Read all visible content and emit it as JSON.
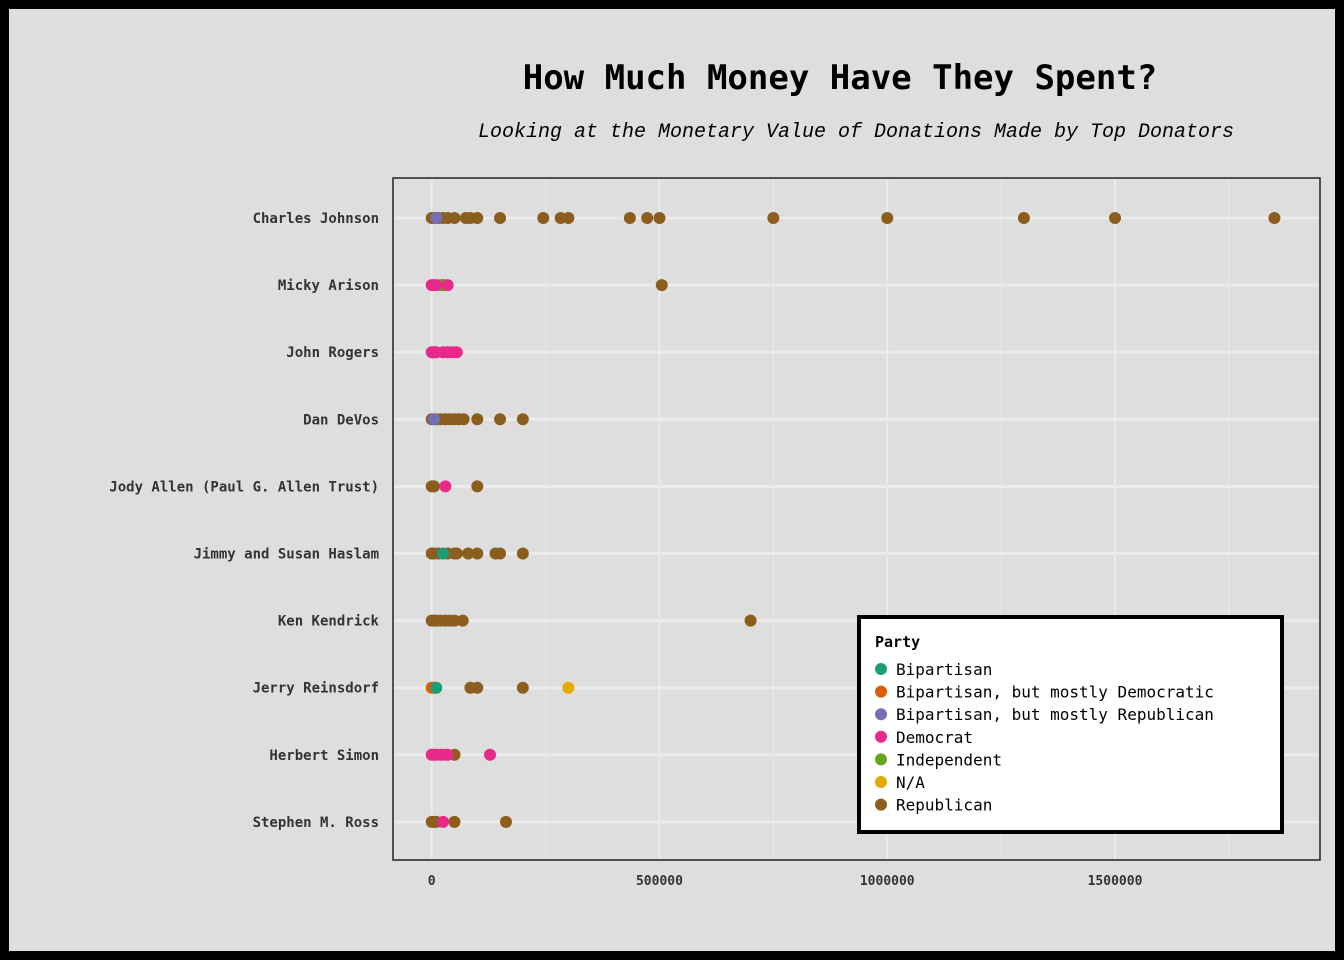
{
  "chart_data": {
    "type": "scatter",
    "title": "How Much Money Have They Spent?",
    "subtitle": "Looking at the Monetary Value of Donations Made by Top Donators",
    "xlabel": "",
    "ylabel": "",
    "xlim": [
      -85000,
      1950000
    ],
    "x_ticks": [
      0,
      500000,
      1000000,
      1500000
    ],
    "x_tick_labels": [
      "0",
      "500000",
      "1000000",
      "1500000"
    ],
    "grid": true,
    "legend_title": "Party",
    "legend_position": "bottom-right",
    "categories": [
      "Charles Johnson",
      "Micky Arison",
      "John Rogers",
      "Dan DeVos",
      "Jody Allen (Paul G. Allen Trust)",
      "Jimmy and Susan Haslam",
      "Ken Kendrick",
      "Jerry Reinsdorf",
      "Herbert Simon",
      "Stephen M. Ross"
    ],
    "series": [
      {
        "name": "Bipartisan",
        "color": "#1b9e77",
        "points": [
          {
            "donor": "Jimmy and Susan Haslam",
            "x": 25000
          },
          {
            "donor": "Jerry Reinsdorf",
            "x": 10000
          }
        ]
      },
      {
        "name": "Bipartisan, but mostly Democratic",
        "color": "#d95f02",
        "points": [
          {
            "donor": "Jerry Reinsdorf",
            "x": 0
          },
          {
            "donor": "Jerry Reinsdorf",
            "x": 5000
          }
        ]
      },
      {
        "name": "Bipartisan, but mostly Republican",
        "color": "#7570b3",
        "points": [
          {
            "donor": "Charles Johnson",
            "x": 10000
          },
          {
            "donor": "Dan DeVos",
            "x": 5000
          }
        ]
      },
      {
        "name": "Democrat",
        "color": "#e7298a",
        "points": [
          {
            "donor": "Micky Arison",
            "x": 0
          },
          {
            "donor": "Micky Arison",
            "x": 5000
          },
          {
            "donor": "Micky Arison",
            "x": 10000
          },
          {
            "donor": "Micky Arison",
            "x": 35000
          },
          {
            "donor": "John Rogers",
            "x": 0
          },
          {
            "donor": "John Rogers",
            "x": 2700
          },
          {
            "donor": "John Rogers",
            "x": 5000
          },
          {
            "donor": "John Rogers",
            "x": 10000
          },
          {
            "donor": "John Rogers",
            "x": 25000
          },
          {
            "donor": "John Rogers",
            "x": 35000
          },
          {
            "donor": "John Rogers",
            "x": 45000
          },
          {
            "donor": "John Rogers",
            "x": 55000
          },
          {
            "donor": "Jody Allen (Paul G. Allen Trust)",
            "x": 30000
          },
          {
            "donor": "Herbert Simon",
            "x": 0
          },
          {
            "donor": "Herbert Simon",
            "x": 5000
          },
          {
            "donor": "Herbert Simon",
            "x": 10000
          },
          {
            "donor": "Herbert Simon",
            "x": 20000
          },
          {
            "donor": "Herbert Simon",
            "x": 30000
          },
          {
            "donor": "Herbert Simon",
            "x": 35000
          },
          {
            "donor": "Herbert Simon",
            "x": 128000
          },
          {
            "donor": "Stephen M. Ross",
            "x": 25000
          }
        ]
      },
      {
        "name": "Independent",
        "color": "#66a61e",
        "points": [
          {
            "donor": "Micky Arison",
            "x": 20000
          }
        ]
      },
      {
        "name": "N/A",
        "color": "#e6ab02",
        "points": [
          {
            "donor": "Jerry Reinsdorf",
            "x": 300000
          }
        ]
      },
      {
        "name": "Republican",
        "color": "#8c5e1e",
        "points": [
          {
            "donor": "Charles Johnson",
            "x": 0
          },
          {
            "donor": "Charles Johnson",
            "x": 5000
          },
          {
            "donor": "Charles Johnson",
            "x": 15000
          },
          {
            "donor": "Charles Johnson",
            "x": 25000
          },
          {
            "donor": "Charles Johnson",
            "x": 35000
          },
          {
            "donor": "Charles Johnson",
            "x": 50000
          },
          {
            "donor": "Charles Johnson",
            "x": 75000
          },
          {
            "donor": "Charles Johnson",
            "x": 85000
          },
          {
            "donor": "Charles Johnson",
            "x": 100000
          },
          {
            "donor": "Charles Johnson",
            "x": 150000
          },
          {
            "donor": "Charles Johnson",
            "x": 245000
          },
          {
            "donor": "Charles Johnson",
            "x": 283000
          },
          {
            "donor": "Charles Johnson",
            "x": 300000
          },
          {
            "donor": "Charles Johnson",
            "x": 435000
          },
          {
            "donor": "Charles Johnson",
            "x": 473000
          },
          {
            "donor": "Charles Johnson",
            "x": 500000
          },
          {
            "donor": "Charles Johnson",
            "x": 750000
          },
          {
            "donor": "Charles Johnson",
            "x": 1000000
          },
          {
            "donor": "Charles Johnson",
            "x": 1300000
          },
          {
            "donor": "Charles Johnson",
            "x": 1500000
          },
          {
            "donor": "Charles Johnson",
            "x": 1850000
          },
          {
            "donor": "Micky Arison",
            "x": 25000
          },
          {
            "donor": "Micky Arison",
            "x": 505000
          },
          {
            "donor": "Dan DeVos",
            "x": 0
          },
          {
            "donor": "Dan DeVos",
            "x": 10000
          },
          {
            "donor": "Dan DeVos",
            "x": 20000
          },
          {
            "donor": "Dan DeVos",
            "x": 30000
          },
          {
            "donor": "Dan DeVos",
            "x": 40000
          },
          {
            "donor": "Dan DeVos",
            "x": 50000
          },
          {
            "donor": "Dan DeVos",
            "x": 60000
          },
          {
            "donor": "Dan DeVos",
            "x": 70000
          },
          {
            "donor": "Dan DeVos",
            "x": 100000
          },
          {
            "donor": "Dan DeVos",
            "x": 150000
          },
          {
            "donor": "Dan DeVos",
            "x": 200000
          },
          {
            "donor": "Jody Allen (Paul G. Allen Trust)",
            "x": 0
          },
          {
            "donor": "Jody Allen (Paul G. Allen Trust)",
            "x": 5000
          },
          {
            "donor": "Jody Allen (Paul G. Allen Trust)",
            "x": 100000
          },
          {
            "donor": "Jimmy and Susan Haslam",
            "x": 0
          },
          {
            "donor": "Jimmy and Susan Haslam",
            "x": 5000
          },
          {
            "donor": "Jimmy and Susan Haslam",
            "x": 15000
          },
          {
            "donor": "Jimmy and Susan Haslam",
            "x": 35000
          },
          {
            "donor": "Jimmy and Susan Haslam",
            "x": 50000
          },
          {
            "donor": "Jimmy and Susan Haslam",
            "x": 55000
          },
          {
            "donor": "Jimmy and Susan Haslam",
            "x": 80000
          },
          {
            "donor": "Jimmy and Susan Haslam",
            "x": 100000
          },
          {
            "donor": "Jimmy and Susan Haslam",
            "x": 140000
          },
          {
            "donor": "Jimmy and Susan Haslam",
            "x": 150000
          },
          {
            "donor": "Jimmy and Susan Haslam",
            "x": 200000
          },
          {
            "donor": "Ken Kendrick",
            "x": 0
          },
          {
            "donor": "Ken Kendrick",
            "x": 5000
          },
          {
            "donor": "Ken Kendrick",
            "x": 10000
          },
          {
            "donor": "Ken Kendrick",
            "x": 20000
          },
          {
            "donor": "Ken Kendrick",
            "x": 30000
          },
          {
            "donor": "Ken Kendrick",
            "x": 40000
          },
          {
            "donor": "Ken Kendrick",
            "x": 50000
          },
          {
            "donor": "Ken Kendrick",
            "x": 68000
          },
          {
            "donor": "Ken Kendrick",
            "x": 700000
          },
          {
            "donor": "Jerry Reinsdorf",
            "x": 85000
          },
          {
            "donor": "Jerry Reinsdorf",
            "x": 100000
          },
          {
            "donor": "Jerry Reinsdorf",
            "x": 200000
          },
          {
            "donor": "Herbert Simon",
            "x": 50000
          },
          {
            "donor": "Stephen M. Ross",
            "x": 0
          },
          {
            "donor": "Stephen M. Ross",
            "x": 5000
          },
          {
            "donor": "Stephen M. Ross",
            "x": 10000
          },
          {
            "donor": "Stephen M. Ross",
            "x": 50000
          },
          {
            "donor": "Stephen M. Ross",
            "x": 163000
          }
        ]
      }
    ]
  }
}
